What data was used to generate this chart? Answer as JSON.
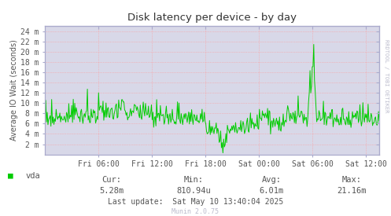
{
  "title": "Disk latency per device - by day",
  "ylabel": "Average IO Wait (seconds)",
  "bg_color": "#FFFFFF",
  "plot_bg_color": "#D8D8E8",
  "grid_color": "#FF9999",
  "line_color": "#00CC00",
  "border_color": "#AAAAAA",
  "text_color": "#555555",
  "title_color": "#333333",
  "watermark_color": "#BBBBCC",
  "tick_color": "#AAAACC",
  "x_ticks_labels": [
    "Fri 06:00",
    "Fri 12:00",
    "Fri 18:00",
    "Sat 00:00",
    "Sat 06:00",
    "Sat 12:00"
  ],
  "y_ticks_labels": [
    "2 m",
    "4 m",
    "6 m",
    "8 m",
    "10 m",
    "12 m",
    "14 m",
    "16 m",
    "18 m",
    "20 m",
    "22 m",
    "24 m"
  ],
  "y_ticks_vals": [
    0.002,
    0.004,
    0.006,
    0.008,
    0.01,
    0.012,
    0.014,
    0.016,
    0.018,
    0.02,
    0.022,
    0.024
  ],
  "ylim": [
    0,
    0.025
  ],
  "xlim_start": 0,
  "xlim_end": 37.5,
  "x_tick_hours": [
    6,
    12,
    18,
    24,
    30,
    36
  ],
  "legend_label": "vda",
  "legend_color": "#00CC00",
  "cur_val": "5.28m",
  "min_val": "810.94u",
  "avg_val": "6.01m",
  "max_val": "21.16m",
  "last_update": "Last update:  Sat May 10 13:40:04 2025",
  "munin_version": "Munin 2.0.75",
  "rrdtool_text": "RRDTOOL / TOBI OETIKER"
}
